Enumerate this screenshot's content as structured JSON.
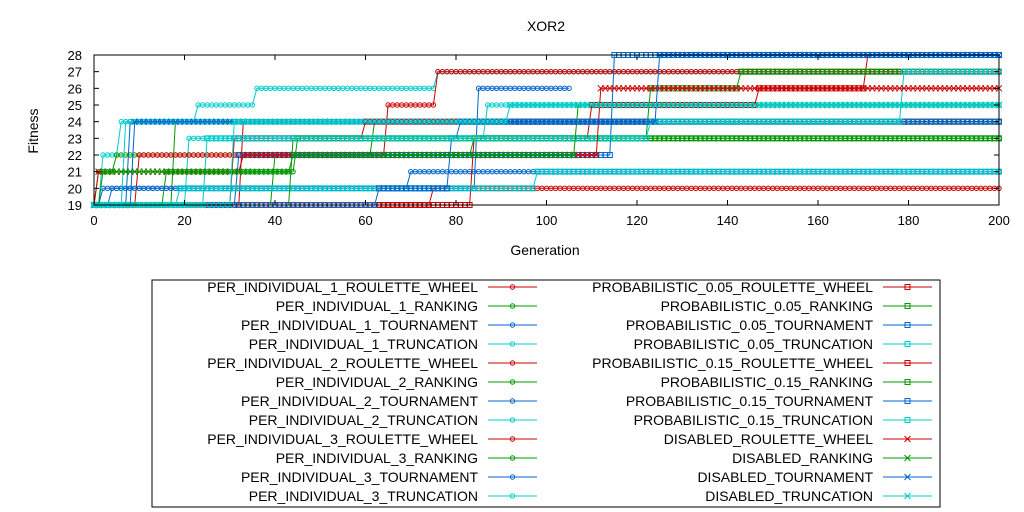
{
  "chart_data": {
    "type": "line",
    "title": "XOR2",
    "xlabel": "Generation",
    "ylabel": "Fitness",
    "xlim": [
      0,
      200
    ],
    "ylim": [
      19,
      28
    ],
    "x_ticks": [
      0,
      20,
      40,
      60,
      80,
      100,
      120,
      140,
      160,
      180,
      200
    ],
    "y_ticks": [
      19,
      20,
      21,
      22,
      23,
      24,
      25,
      26,
      27,
      28
    ],
    "grid": false,
    "legend_position": "bottom",
    "series": [
      {
        "name": "PER_INDIVIDUAL_1_ROULETTE_WHEEL",
        "color": "#cc0000",
        "marker": "circle",
        "steps": [
          [
            0,
            19
          ],
          [
            33,
            24
          ],
          [
            200,
            24
          ]
        ]
      },
      {
        "name": "PER_INDIVIDUAL_1_RANKING",
        "color": "#009900",
        "marker": "circle",
        "steps": [
          [
            0,
            19
          ],
          [
            18,
            24
          ],
          [
            118,
            24
          ]
        ]
      },
      {
        "name": "PER_INDIVIDUAL_1_TOURNAMENT",
        "color": "#0066cc",
        "marker": "circle",
        "steps": [
          [
            0,
            19
          ],
          [
            4,
            20
          ],
          [
            65,
            20
          ],
          [
            70,
            21
          ],
          [
            200,
            21
          ]
        ]
      },
      {
        "name": "PER_INDIVIDUAL_1_TRUNCATION",
        "color": "#00cccc",
        "marker": "circle",
        "steps": [
          [
            0,
            19
          ],
          [
            2,
            22
          ],
          [
            6,
            24
          ],
          [
            23,
            25
          ],
          [
            36,
            26
          ],
          [
            76,
            27
          ],
          [
            200,
            27
          ]
        ]
      },
      {
        "name": "PER_INDIVIDUAL_2_ROULETTE_WHEEL",
        "color": "#cc0000",
        "marker": "circle",
        "steps": [
          [
            0,
            19
          ],
          [
            12,
            19
          ],
          [
            72,
            19
          ],
          [
            75,
            20
          ],
          [
            200,
            20
          ]
        ]
      },
      {
        "name": "PER_INDIVIDUAL_2_RANKING",
        "color": "#009900",
        "marker": "circle",
        "steps": [
          [
            0,
            19
          ],
          [
            1,
            21
          ],
          [
            5,
            22
          ],
          [
            44,
            22
          ],
          [
            62,
            24
          ],
          [
            200,
            24
          ]
        ]
      },
      {
        "name": "PER_INDIVIDUAL_2_TOURNAMENT",
        "color": "#0066cc",
        "marker": "circle",
        "steps": [
          [
            0,
            19
          ],
          [
            8,
            24
          ],
          [
            200,
            24
          ]
        ]
      },
      {
        "name": "PER_INDIVIDUAL_2_TRUNCATION",
        "color": "#00cccc",
        "marker": "circle",
        "steps": [
          [
            0,
            19
          ],
          [
            21,
            23
          ],
          [
            83,
            23
          ],
          [
            87,
            25
          ],
          [
            200,
            25
          ]
        ]
      },
      {
        "name": "PER_INDIVIDUAL_3_ROULETTE_WHEEL",
        "color": "#cc0000",
        "marker": "circle",
        "steps": [
          [
            0,
            19
          ],
          [
            10,
            22
          ],
          [
            63,
            22
          ],
          [
            65,
            25
          ],
          [
            76,
            27
          ],
          [
            200,
            27
          ]
        ]
      },
      {
        "name": "PER_INDIVIDUAL_3_RANKING",
        "color": "#009900",
        "marker": "circle",
        "steps": [
          [
            0,
            19
          ],
          [
            16,
            21
          ],
          [
            43,
            21
          ],
          [
            45,
            23
          ],
          [
            197,
            23
          ],
          [
            200,
            23
          ]
        ]
      },
      {
        "name": "PER_INDIVIDUAL_3_TOURNAMENT",
        "color": "#0066cc",
        "marker": "circle",
        "steps": [
          [
            0,
            19
          ],
          [
            2,
            20
          ],
          [
            62,
            20
          ],
          [
            85,
            26
          ],
          [
            105,
            26
          ]
        ]
      },
      {
        "name": "PER_INDIVIDUAL_3_TRUNCATION",
        "color": "#00cccc",
        "marker": "circle",
        "steps": [
          [
            0,
            19
          ],
          [
            7,
            24
          ],
          [
            40,
            24
          ],
          [
            60,
            24
          ],
          [
            200,
            24
          ]
        ]
      },
      {
        "name": "PROBABILISTIC_0.05_ROULETTE_WHEEL",
        "color": "#cc0000",
        "marker": "square",
        "steps": [
          [
            0,
            19
          ],
          [
            84,
            23
          ],
          [
            110,
            25
          ],
          [
            144,
            25
          ],
          [
            147,
            26
          ],
          [
            169,
            26
          ],
          [
            171,
            28
          ],
          [
            200,
            28
          ]
        ]
      },
      {
        "name": "PROBABILISTIC_0.05_RANKING",
        "color": "#009900",
        "marker": "square",
        "steps": [
          [
            0,
            19
          ],
          [
            40,
            22
          ],
          [
            84,
            23
          ],
          [
            200,
            23
          ]
        ]
      },
      {
        "name": "PROBABILISTIC_0.05_TOURNAMENT",
        "color": "#0066cc",
        "marker": "square",
        "steps": [
          [
            0,
            19
          ],
          [
            32,
            22
          ],
          [
            80,
            22
          ],
          [
            115,
            28
          ],
          [
            200,
            28
          ]
        ]
      },
      {
        "name": "PROBABILISTIC_0.05_TRUNCATION",
        "color": "#00cccc",
        "marker": "square",
        "steps": [
          [
            0,
            19
          ],
          [
            19,
            20
          ],
          [
            90,
            20
          ],
          [
            98,
            21
          ],
          [
            200,
            21
          ]
        ]
      },
      {
        "name": "PROBABILISTIC_0.15_ROULETTE_WHEEL",
        "color": "#cc0000",
        "marker": "square",
        "steps": [
          [
            0,
            19
          ],
          [
            31,
            23
          ],
          [
            57,
            23
          ],
          [
            60,
            24
          ],
          [
            200,
            24
          ]
        ]
      },
      {
        "name": "PROBABILISTIC_0.15_RANKING",
        "color": "#009900",
        "marker": "square",
        "steps": [
          [
            0,
            19
          ],
          [
            44,
            23
          ],
          [
            121,
            23
          ],
          [
            123,
            26
          ],
          [
            140,
            26
          ],
          [
            143,
            27
          ],
          [
            200,
            27
          ]
        ]
      },
      {
        "name": "PROBABILISTIC_0.15_TOURNAMENT",
        "color": "#0066cc",
        "marker": "square",
        "steps": [
          [
            0,
            19
          ],
          [
            63,
            20
          ],
          [
            79,
            23
          ],
          [
            81,
            24
          ],
          [
            200,
            24
          ]
        ]
      },
      {
        "name": "PROBABILISTIC_0.15_TRUNCATION",
        "color": "#00cccc",
        "marker": "square",
        "steps": [
          [
            0,
            19
          ],
          [
            25,
            23
          ],
          [
            118,
            23
          ],
          [
            123,
            24
          ],
          [
            175,
            24
          ],
          [
            179,
            27
          ],
          [
            200,
            27
          ]
        ]
      },
      {
        "name": "DISABLED_ROULETTE_WHEEL",
        "color": "#cc0000",
        "marker": "x",
        "steps": [
          [
            0,
            19
          ],
          [
            1,
            21
          ],
          [
            30,
            21
          ],
          [
            33,
            22
          ],
          [
            110,
            22
          ],
          [
            112,
            26
          ],
          [
            160,
            26
          ],
          [
            200,
            26
          ]
        ]
      },
      {
        "name": "DISABLED_RANKING",
        "color": "#009900",
        "marker": "x",
        "steps": [
          [
            0,
            19
          ],
          [
            2,
            21
          ],
          [
            42,
            21
          ],
          [
            44,
            22
          ],
          [
            104,
            22
          ],
          [
            107,
            25
          ],
          [
            200,
            25
          ]
        ]
      },
      {
        "name": "DISABLED_TOURNAMENT",
        "color": "#0066cc",
        "marker": "x",
        "steps": [
          [
            0,
            19
          ],
          [
            9,
            24
          ],
          [
            120,
            24
          ],
          [
            125,
            28
          ],
          [
            200,
            28
          ]
        ]
      },
      {
        "name": "DISABLED_TRUNCATION",
        "color": "#00cccc",
        "marker": "x",
        "steps": [
          [
            0,
            19
          ],
          [
            31,
            24
          ],
          [
            64,
            24
          ],
          [
            92,
            25
          ],
          [
            200,
            25
          ]
        ]
      }
    ]
  }
}
